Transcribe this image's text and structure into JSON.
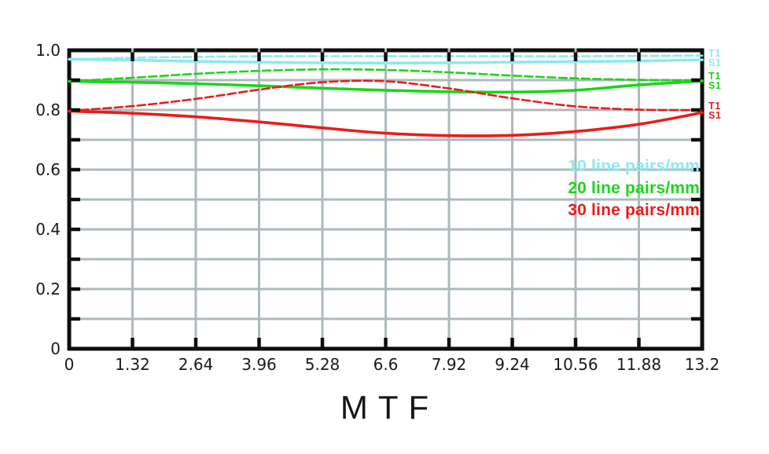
{
  "title": "MTF",
  "chart_data": {
    "type": "line",
    "title": "MTF",
    "xlabel": "",
    "ylabel": "",
    "xlim": [
      0,
      13.2
    ],
    "ylim": [
      0,
      1.0
    ],
    "x_ticks": [
      0,
      1.32,
      2.64,
      3.96,
      5.28,
      6.6,
      7.92,
      9.24,
      10.56,
      11.88,
      13.2
    ],
    "x_tick_labels": [
      "0",
      "1.32",
      "2.64",
      "3.96",
      "5.28",
      "6.6",
      "7.92",
      "9.24",
      "10.56",
      "11.88",
      "13.2"
    ],
    "y_ticks": [
      0,
      0.2,
      0.4,
      0.6,
      0.8,
      1.0
    ],
    "y_tick_labels": [
      "0",
      "0.2",
      "0.4",
      "0.6",
      "0.8",
      "1.0"
    ],
    "y_minor_step": 0.1,
    "grid": true,
    "grid_color": "#aeb9bd",
    "axis_color": "#0d0d0d",
    "tick_label_color": "#1a1a1a",
    "x": [
      0,
      1.32,
      2.64,
      3.96,
      5.28,
      6.6,
      7.92,
      9.24,
      10.56,
      11.88,
      13.2
    ],
    "series": [
      {
        "name": "10 line pairs/mm T1",
        "frequency": "10 line pairs/mm",
        "ray": "T1",
        "line_style": "dashed",
        "color": "#8ce9f2",
        "values": [
          0.97,
          0.975,
          0.978,
          0.98,
          0.98,
          0.98,
          0.98,
          0.98,
          0.98,
          0.981,
          0.982
        ]
      },
      {
        "name": "10 line pairs/mm S1",
        "frequency": "10 line pairs/mm",
        "ray": "S1",
        "line_style": "solid",
        "color": "#8ce9f2",
        "values": [
          0.97,
          0.967,
          0.963,
          0.96,
          0.958,
          0.957,
          0.958,
          0.96,
          0.962,
          0.964,
          0.968
        ]
      },
      {
        "name": "20 line pairs/mm T1",
        "frequency": "20 line pairs/mm",
        "ray": "T1",
        "line_style": "dashed",
        "color": "#1bd51b",
        "values": [
          0.896,
          0.908,
          0.921,
          0.931,
          0.936,
          0.934,
          0.926,
          0.915,
          0.906,
          0.901,
          0.899
        ]
      },
      {
        "name": "20 line pairs/mm S1",
        "frequency": "20 line pairs/mm",
        "ray": "S1",
        "line_style": "solid",
        "color": "#1bd51b",
        "values": [
          0.896,
          0.893,
          0.888,
          0.881,
          0.873,
          0.866,
          0.861,
          0.86,
          0.866,
          0.884,
          0.897
        ]
      },
      {
        "name": "30 line pairs/mm T1",
        "frequency": "30 line pairs/mm",
        "ray": "T1",
        "line_style": "dashed",
        "color": "#ea1c1c",
        "values": [
          0.797,
          0.813,
          0.837,
          0.868,
          0.893,
          0.896,
          0.872,
          0.839,
          0.812,
          0.801,
          0.799
        ]
      },
      {
        "name": "30 line pairs/mm S1",
        "frequency": "30 line pairs/mm",
        "ray": "S1",
        "line_style": "solid",
        "color": "#ea1c1c",
        "values": [
          0.796,
          0.789,
          0.777,
          0.76,
          0.74,
          0.722,
          0.714,
          0.715,
          0.728,
          0.752,
          0.791
        ]
      }
    ],
    "legend": {
      "position": "inside-right",
      "items": [
        {
          "label": "10 line pairs/mm",
          "color": "#8ce9f2"
        },
        {
          "label": "20 line pairs/mm",
          "color": "#1bd51b"
        },
        {
          "label": "30 line pairs/mm",
          "color": "#ea1c1c"
        }
      ]
    },
    "curve_labels": [
      {
        "t": "T1",
        "s": "S1",
        "color": "#8ce9f2",
        "anchor": 0.975
      },
      {
        "t": "T1",
        "s": "S1",
        "color": "#1bd51b",
        "anchor": 0.898
      },
      {
        "t": "T1",
        "s": "S1",
        "color": "#ea1c1c",
        "anchor": 0.798
      }
    ]
  }
}
